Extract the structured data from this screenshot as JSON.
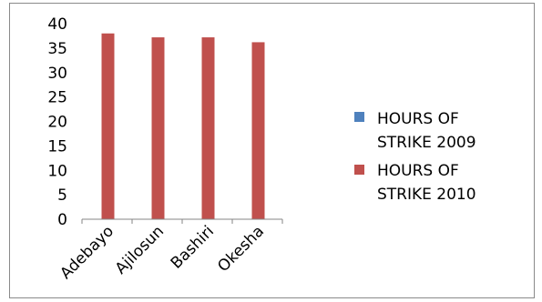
{
  "chart_data": {
    "type": "bar",
    "categories": [
      "Adebayo",
      "Ajilosun",
      "Bashiri",
      "Okesha"
    ],
    "series": [
      {
        "name": "HOURS OF STRIKE 2009",
        "values": [
          0,
          0,
          0,
          0
        ],
        "color": "#4f81bd"
      },
      {
        "name": "HOURS OF STRIKE 2010",
        "values": [
          38,
          37.2,
          37.2,
          36.2
        ],
        "color": "#c0504d"
      }
    ],
    "title": "",
    "xlabel": "",
    "ylabel": "",
    "ylim": [
      0,
      40
    ],
    "yticks": [
      "0",
      "5",
      "10",
      "15",
      "20",
      "25",
      "30",
      "35",
      "40"
    ],
    "legend_position": "right",
    "grid": false,
    "legend": [
      {
        "line1": "HOURS OF",
        "line2": "STRIKE 2009"
      },
      {
        "line1": "HOURS OF",
        "line2": "STRIKE 2010"
      }
    ]
  }
}
